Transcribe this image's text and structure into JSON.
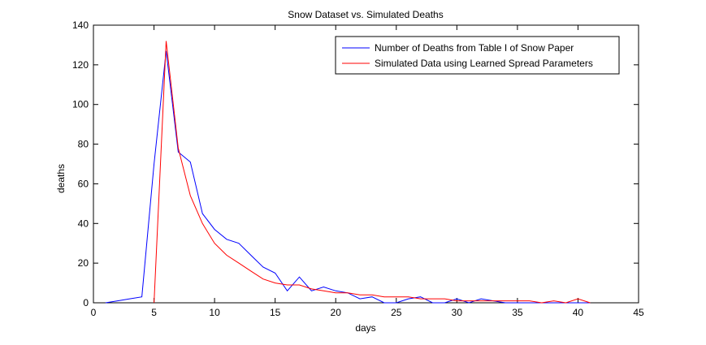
{
  "chart_data": {
    "type": "line",
    "title": "Snow Dataset vs. Simulated Deaths",
    "xlabel": "days",
    "ylabel": "deaths",
    "xlim": [
      0,
      45
    ],
    "ylim": [
      0,
      140
    ],
    "xticks": [
      0,
      5,
      10,
      15,
      20,
      25,
      30,
      35,
      40,
      45
    ],
    "yticks": [
      0,
      20,
      40,
      60,
      80,
      100,
      120,
      140
    ],
    "grid": false,
    "legend_position": "top-right",
    "series": [
      {
        "name": "Number of Deaths from Table I of Snow Paper",
        "color": "#0000ff",
        "x": [
          1,
          2,
          3,
          4,
          5,
          6,
          7,
          8,
          9,
          10,
          11,
          12,
          13,
          14,
          15,
          16,
          17,
          18,
          19,
          20,
          21,
          22,
          23,
          24,
          25,
          26,
          27,
          28,
          29,
          30,
          31,
          32,
          33,
          34,
          35,
          36,
          37,
          38,
          39,
          40,
          41
        ],
        "y": [
          0,
          1,
          2,
          3,
          70,
          127,
          76,
          71,
          45,
          37,
          32,
          30,
          24,
          18,
          15,
          6,
          13,
          6,
          8,
          6,
          5,
          2,
          3,
          0,
          0,
          2,
          3,
          0,
          0,
          2,
          0,
          2,
          1,
          0,
          0,
          0,
          0,
          0,
          0,
          0,
          0
        ]
      },
      {
        "name": "Simulated Data using Learned Spread Parameters",
        "color": "#ff0000",
        "x": [
          5,
          6,
          7,
          8,
          9,
          10,
          11,
          12,
          13,
          14,
          15,
          16,
          17,
          18,
          19,
          20,
          21,
          22,
          23,
          24,
          25,
          26,
          27,
          28,
          29,
          30,
          31,
          32,
          33,
          34,
          35,
          36,
          37,
          38,
          39,
          40,
          41
        ],
        "y": [
          0,
          132,
          78,
          54,
          40,
          30,
          24,
          20,
          16,
          12,
          10,
          9,
          9,
          7,
          6,
          5,
          5,
          4,
          4,
          3,
          3,
          3,
          2,
          2,
          2,
          1,
          1,
          1,
          1,
          1,
          1,
          1,
          0,
          1,
          0,
          2,
          0
        ]
      }
    ]
  }
}
